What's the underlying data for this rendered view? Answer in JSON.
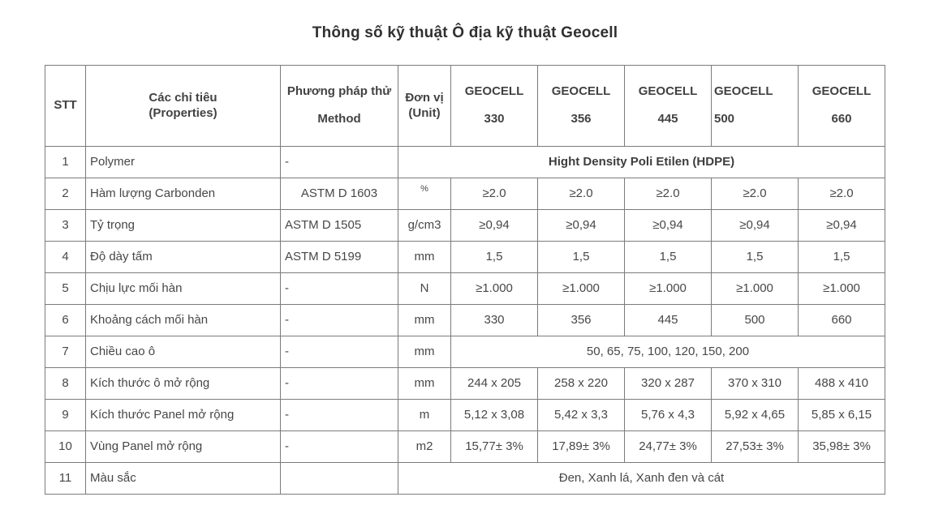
{
  "page_title": "Thông số kỹ thuật Ô địa kỹ thuật Geocell",
  "colors": {
    "background": "#ffffff",
    "text": "#474747",
    "border": "#7b7b7b",
    "title": "#303030"
  },
  "table": {
    "header": {
      "cells": [
        {
          "lines": [
            "STT"
          ]
        },
        {
          "lines": [
            "Các chỉ tiêu",
            "(Properties)"
          ]
        },
        {
          "lines": [
            "Phương pháp thử",
            "Method"
          ],
          "gap": true
        },
        {
          "lines": [
            "Đơn vị",
            "(Unit)"
          ]
        },
        {
          "lines": [
            "GEOCELL",
            "330"
          ],
          "gap": true
        },
        {
          "lines": [
            "GEOCELL",
            "356"
          ],
          "gap": true
        },
        {
          "lines": [
            "GEOCELL",
            "445"
          ],
          "gap": true
        },
        {
          "lines": [
            "GEOCELL",
            "500"
          ],
          "gap": true,
          "align": "left"
        },
        {
          "lines": [
            "GEOCELL",
            "660"
          ],
          "gap": true
        }
      ]
    },
    "rows": [
      {
        "cells": [
          "1",
          "Polymer",
          {
            "text": "-",
            "align": "left"
          },
          {
            "text": "Hight Density Poli Etilen (HDPE)",
            "colspan": 6,
            "bold": true
          }
        ]
      },
      {
        "cells": [
          "2",
          "Hàm lượng Carbonden",
          {
            "text": "ASTM D 1603",
            "align": "center"
          },
          {
            "text": "%",
            "small": true
          },
          "≥2.0",
          "≥2.0",
          "≥2.0",
          "≥2.0",
          "≥2.0"
        ]
      },
      {
        "cells": [
          "3",
          "Tỷ trọng",
          {
            "text": "ASTM D 1505",
            "align": "left"
          },
          "g/cm3",
          "≥0,94",
          "≥0,94",
          "≥0,94",
          "≥0,94",
          "≥0,94"
        ]
      },
      {
        "cells": [
          "4",
          "Độ dày tấm",
          {
            "text": "ASTM D 5199",
            "align": "left"
          },
          "mm",
          "1,5",
          "1,5",
          "1,5",
          "1,5",
          "1,5"
        ]
      },
      {
        "cells": [
          "5",
          "Chịu lực mối hàn",
          {
            "text": "-",
            "align": "left"
          },
          "N",
          "≥1.000",
          "≥1.000",
          "≥1.000",
          "≥1.000",
          "≥1.000"
        ]
      },
      {
        "cells": [
          "6",
          "Khoảng cách mối hàn",
          {
            "text": "-",
            "align": "left"
          },
          "mm",
          "330",
          "356",
          "445",
          "500",
          "660"
        ]
      },
      {
        "cells": [
          "7",
          "Chiều cao ô",
          {
            "text": "-",
            "align": "left"
          },
          "mm",
          {
            "text": "50, 65, 75, 100, 120, 150, 200",
            "colspan": 5
          }
        ]
      },
      {
        "cells": [
          "8",
          "Kích thước ô mở rộng",
          {
            "text": "-",
            "align": "left"
          },
          "mm",
          "244 x 205",
          "258 x 220",
          "320 x 287",
          "370 x 310",
          "488 x 410"
        ]
      },
      {
        "cells": [
          "9",
          "Kích thước Panel mở rộng",
          {
            "text": "-",
            "align": "left"
          },
          "m",
          "5,12 x 3,08",
          "5,42 x 3,3",
          "5,76 x 4,3",
          "5,92 x 4,65",
          "5,85 x 6,15"
        ]
      },
      {
        "cells": [
          "10",
          "Vùng Panel mở rộng",
          {
            "text": "-",
            "align": "left"
          },
          "m2",
          "15,77± 3%",
          "17,89± 3%",
          "24,77± 3%",
          "27,53± 3%",
          "35,98± 3%"
        ]
      },
      {
        "cells": [
          "11",
          "Màu sắc",
          "",
          {
            "text": "Đen, Xanh lá, Xanh đen và cát",
            "colspan": 6
          }
        ]
      }
    ]
  }
}
